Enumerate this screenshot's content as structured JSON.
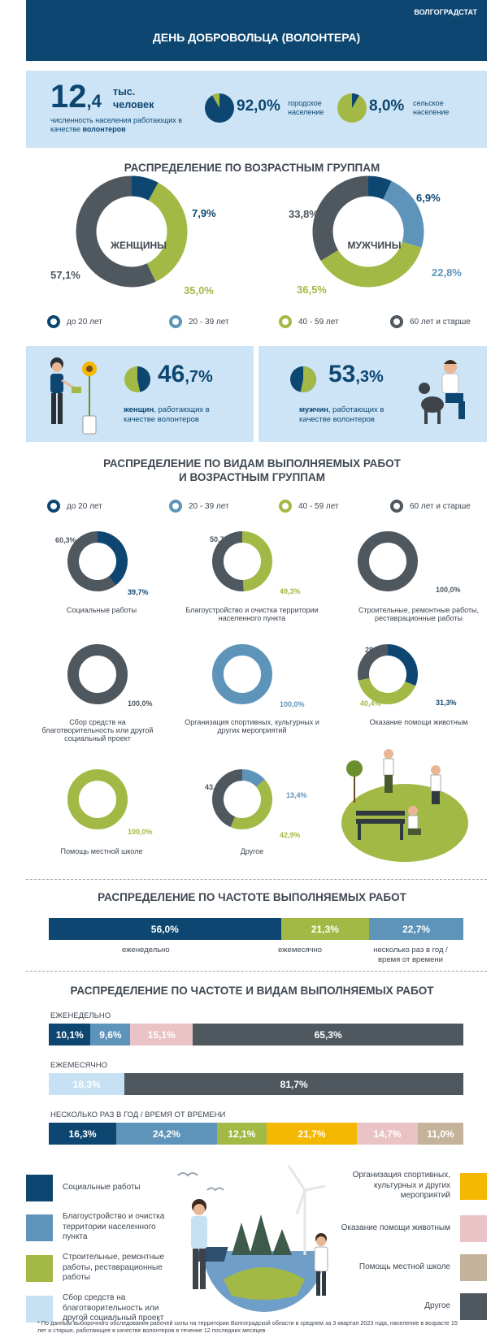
{
  "header": {
    "org": "ВОЛГОГРАДСТАТ",
    "title": "ДЕНЬ ДОБРОВОЛЬЦА  (ВОЛОНТЕРА)"
  },
  "colors": {
    "navy": "#0d4771",
    "blue": "#5f94ba",
    "green": "#a2b946",
    "gray": "#4f575f",
    "light": "#c6e1f3",
    "yellow": "#f5b800",
    "pink": "#e9c3c5",
    "tan": "#c4b39a"
  },
  "summary": {
    "big_int": "12",
    "big_dec": ",4",
    "unit": "тыс. человек",
    "desc": "численность населения работающих в качестве",
    "desc_bold": "волонтеров",
    "urban_value": "92,0%",
    "urban_label": "городское население",
    "rural_value": "8,0%",
    "rural_label": "сельское население"
  },
  "age_section": {
    "title": "РАСПРЕДЕЛЕНИЕ ПО ВОЗРАСТНЫМ ГРУППАМ",
    "women_label": "ЖЕНЩИНЫ",
    "men_label": "МУЖЧИНЫ"
  },
  "legend": [
    "до 20 лет",
    "20 - 39  лет",
    "40 - 59 лет",
    "60 лет и старше"
  ],
  "gender": {
    "women_int": "46",
    "women_dec": ",7%",
    "women_bold": "женщин",
    "women_rest": ", работающих в качестве волонтеров",
    "men_int": "53",
    "men_dec": ",3%",
    "men_bold": "мужчин",
    "men_rest": ", работающих в качестве волонтеров"
  },
  "types_section": {
    "title1": "РАСПРЕДЕЛЕНИЕ ПО ВИДАМ ВЫПОЛНЯЕМЫХ РАБОТ",
    "title2": "И ВОЗРАСТНЫМ ГРУППАМ"
  },
  "freq_section": {
    "title": "РАСПРЕДЕЛЕНИЕ ПО ЧАСТОТЕ ВЫПОЛНЯЕМЫХ РАБОТ"
  },
  "freq_type_section": {
    "title": "РАСПРЕДЕЛЕНИЕ ПО ЧАСТОТЕ И ВИДАМ ВЫПОЛНЯЕМЫХ РАБОТ"
  },
  "footnote": "* По данным выборочного обследования рабочей силы на территории Волгоградской области в среднем за 3 квартал 2023 года, население в возрасте  15 лет и старше, работающее в качестве волонтеров в течение 12 последних месяцев",
  "chart_data": [
    {
      "type": "pie",
      "title": "",
      "values": [
        92.0,
        8.0
      ],
      "categories": [
        "городское население",
        "сельское население"
      ]
    },
    {
      "type": "pie",
      "title": "ЖЕНЩИНЫ",
      "categories": [
        "до 20 лет",
        "20 - 39  лет",
        "40 - 59 лет",
        "60 лет и старше"
      ],
      "values": [
        7.9,
        0,
        35.0,
        57.1
      ],
      "labels": [
        "7,9%",
        "",
        "35,0%",
        "57,1%"
      ]
    },
    {
      "type": "pie",
      "title": "МУЖЧИНЫ",
      "categories": [
        "до 20 лет",
        "20 - 39  лет",
        "40 - 59 лет",
        "60 лет и старше"
      ],
      "values": [
        6.9,
        22.8,
        36.5,
        33.8
      ],
      "labels": [
        "6,9%",
        "22,8%",
        "36,5%",
        "33,8%"
      ]
    },
    {
      "type": "pie",
      "title": "",
      "categories": [
        "женщин",
        "мужчин"
      ],
      "values": [
        46.7,
        53.3
      ]
    },
    {
      "type": "pie",
      "title": "Социальные работы",
      "values": [
        39.7,
        0,
        0,
        60.3
      ],
      "labels": [
        "39,7%",
        "",
        "",
        "60,3%"
      ]
    },
    {
      "type": "pie",
      "title": "Благоустройство и очистка территории населенного пункта",
      "values": [
        0,
        0,
        49.3,
        50.7
      ],
      "labels": [
        "",
        "",
        "49,3%",
        "50,7%"
      ]
    },
    {
      "type": "pie",
      "title": "Строительные, ремонтные работы, реставрационные работы",
      "values": [
        0,
        0,
        0,
        100.0
      ],
      "labels": [
        "",
        "",
        "",
        "100,0%"
      ]
    },
    {
      "type": "pie",
      "title": "Сбор средств на благотворительность или другой социальный проект",
      "values": [
        0,
        0,
        0,
        100.0
      ],
      "labels": [
        "",
        "",
        "",
        "100,0%"
      ]
    },
    {
      "type": "pie",
      "title": "Организация  спортивных, культурных и других мероприятий",
      "values": [
        0,
        100.0,
        0,
        0
      ],
      "labels": [
        "",
        "100,0%",
        "",
        ""
      ]
    },
    {
      "type": "pie",
      "title": "Оказание помощи животным",
      "values": [
        31.3,
        0,
        40.4,
        28.3
      ],
      "labels": [
        "31,3%",
        "",
        "40,4%",
        "28,3%"
      ]
    },
    {
      "type": "pie",
      "title": "Помощь местной школе",
      "values": [
        0,
        0,
        100.0,
        0
      ],
      "labels": [
        "",
        "",
        "100,0%",
        ""
      ]
    },
    {
      "type": "pie",
      "title": "Другое",
      "values": [
        0,
        13.4,
        42.9,
        43.6
      ],
      "labels": [
        "",
        "13,4%",
        "42,9%",
        "43,6%"
      ]
    },
    {
      "type": "bar",
      "title": "РАСПРЕДЕЛЕНИЕ ПО ЧАСТОТЕ ВЫПОЛНЯЕМЫХ РАБОТ",
      "categories": [
        "еженедельно",
        "ежемесячно",
        "несколько раз в год  /  время от времени"
      ],
      "values": [
        56.0,
        21.3,
        22.7
      ],
      "labels": [
        "56,0%",
        "21,3%",
        "22,7%"
      ]
    },
    {
      "type": "bar",
      "title": "ЕЖЕНЕДЕЛЬНО",
      "values": [
        10.1,
        9.6,
        15.1,
        65.3
      ],
      "labels": [
        "10,1%",
        "9,6%",
        "15,1%",
        "65,3%"
      ],
      "categories": [
        "Социальные работы",
        "Благоустройство и очистка территории населенного пункта",
        "Оказание помощи животным",
        "Другое"
      ]
    },
    {
      "type": "bar",
      "title": "ЕЖЕМЕСЯЧНО",
      "values": [
        18.3,
        81.7
      ],
      "labels": [
        "18,3%",
        "81,7%"
      ],
      "categories": [
        "Сбор средств на благотворительность или другой социальный проект",
        "Другое"
      ]
    },
    {
      "type": "bar",
      "title": "НЕСКОЛЬКО РАЗ В ГОД  / ВРЕМЯ ОТ ВРЕМЕНИ",
      "values": [
        16.3,
        24.2,
        12.1,
        21.7,
        14.7,
        11.0
      ],
      "labels": [
        "16,3%",
        "24,2%",
        "12,1%",
        "21,7%",
        "14,7%",
        "11,0%"
      ],
      "categories": [
        "Социальные работы",
        "Благоустройство и очистка территории населенного пункта",
        "Строительные, ремонтные работы, реставрационные работы",
        "Организация  спортивных, культурных и других мероприятий",
        "Оказание помощи животным",
        "Помощь местной школе"
      ]
    }
  ],
  "activity_legend": {
    "left": [
      "Социальные работы",
      "Благоустройство и очистка территории населенного пункта",
      "Строительные, ремонтные работы, реставрационные работы",
      "Сбор средств на благотворительность или другой социальный проект"
    ],
    "right": [
      "Организация  спортивных, культурных и других мероприятий",
      "Оказание помощи животным",
      "Помощь местной школе",
      "Другое"
    ]
  }
}
